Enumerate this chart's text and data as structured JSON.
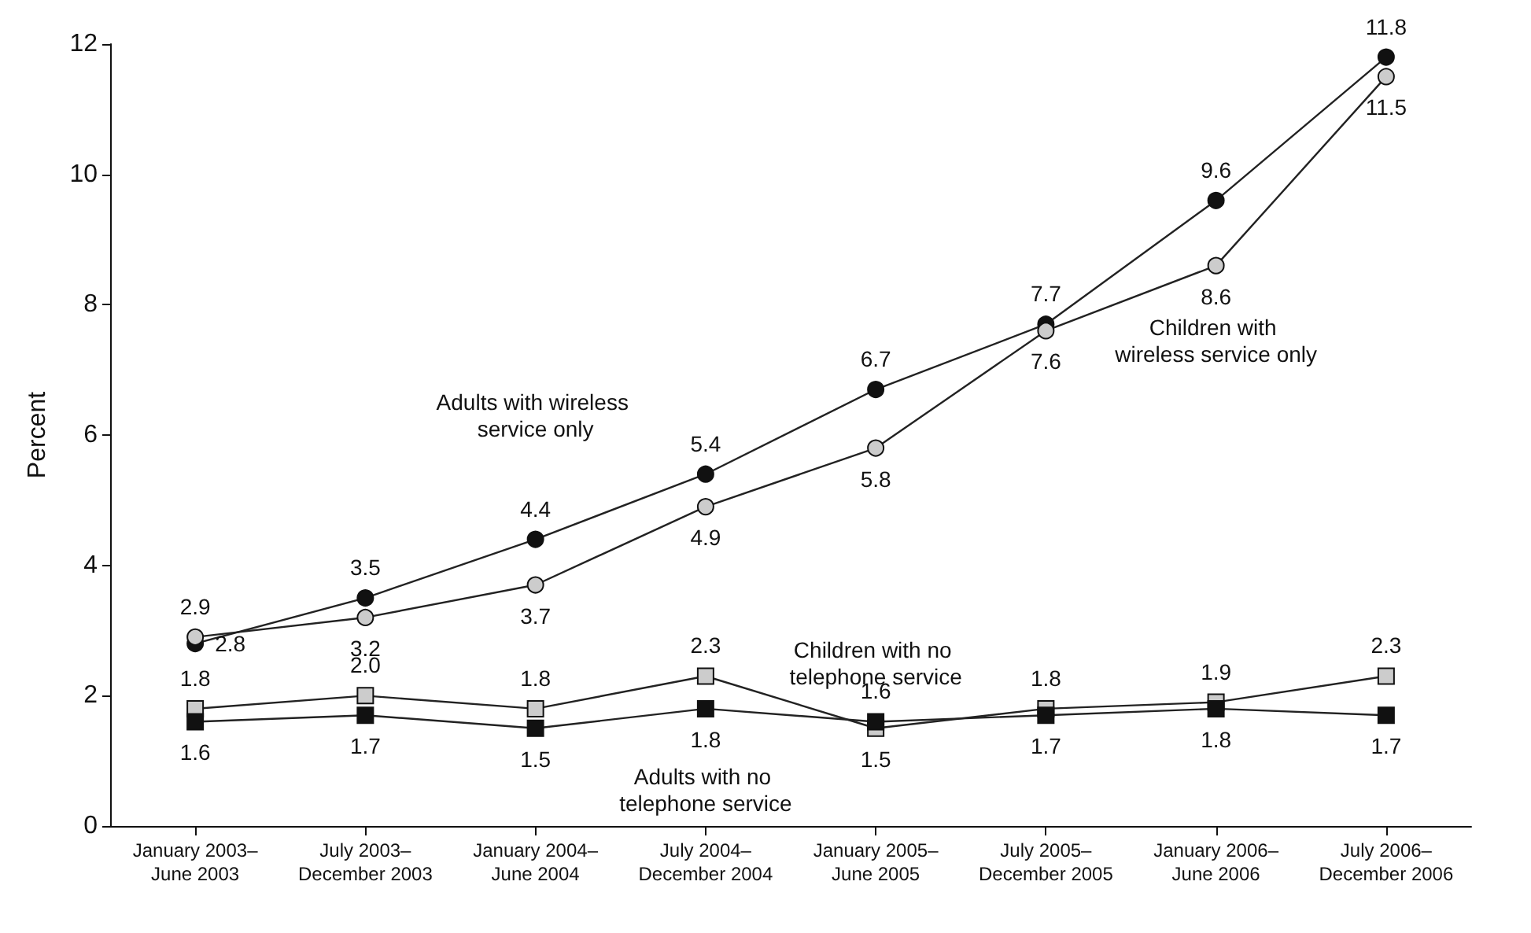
{
  "chart_data": {
    "type": "line",
    "ylabel": "Percent",
    "categories": [
      "January 2003–\nJune 2003",
      "July 2003–\nDecember 2003",
      "January 2004–\nJune 2004",
      "July 2004–\nDecember 2004",
      "January 2005–\nJune 2005",
      "July 2005–\nDecember 2005",
      "January 2006–\nJune 2006",
      "July 2006–\nDecember 2006"
    ],
    "series": [
      {
        "name": "Adults with wireless service only",
        "color": "#111111",
        "marker": "circle",
        "values": [
          2.8,
          3.5,
          4.4,
          5.4,
          6.7,
          7.7,
          9.6,
          11.8
        ]
      },
      {
        "name": "Children with wireless service only",
        "color": "#cccccc",
        "marker": "circle",
        "values": [
          2.9,
          3.2,
          3.7,
          4.9,
          5.8,
          7.6,
          8.6,
          11.5
        ]
      },
      {
        "name": "Children with no telephone service",
        "color": "#cccccc",
        "marker": "square",
        "values": [
          1.8,
          2.0,
          1.8,
          2.3,
          1.5,
          1.8,
          1.9,
          2.3
        ],
        "value_labels": [
          "1.8",
          "2.0",
          "1.8",
          "2.3",
          "1.5",
          "1.8",
          "1.9",
          "2.3"
        ]
      },
      {
        "name": "Adults with no telephone service",
        "color": "#111111",
        "marker": "square",
        "values": [
          1.6,
          1.7,
          1.5,
          1.8,
          1.6,
          1.7,
          1.8,
          1.7
        ]
      }
    ],
    "ylim": [
      0,
      12
    ],
    "yticks": [
      0,
      2,
      4,
      6,
      8,
      10,
      12
    ],
    "grid": false,
    "legend": false,
    "data_labels": true,
    "line_style": "solid"
  }
}
